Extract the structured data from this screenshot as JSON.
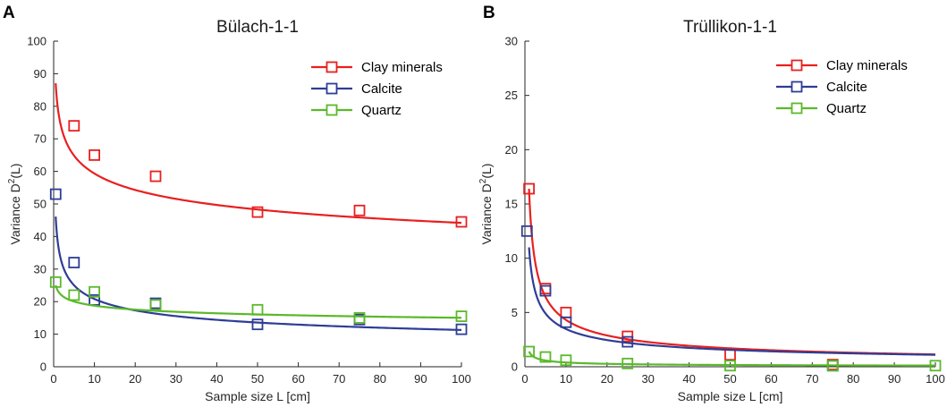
{
  "figure": {
    "panel_letters": [
      "A",
      "B"
    ]
  },
  "chart_data": [
    {
      "type": "scatter",
      "panel": "A",
      "title": "Bülach-1-1",
      "xlabel": "Sample size L [cm]",
      "ylabel_main": "Variance D",
      "ylabel_sup": "2",
      "ylabel_tail": "(L)",
      "xlim": [
        0,
        100
      ],
      "ylim": [
        0,
        100
      ],
      "xticks": [
        0,
        10,
        20,
        30,
        40,
        50,
        60,
        70,
        80,
        90,
        100
      ],
      "yticks": [
        0,
        10,
        20,
        30,
        40,
        50,
        60,
        70,
        80,
        90,
        100
      ],
      "legend_position": "top-right",
      "series": [
        {
          "name": "Clay minerals",
          "color": "#e8201f",
          "x": [
            5,
            10,
            25,
            50,
            75,
            100
          ],
          "y": [
            74,
            65,
            58.5,
            47.5,
            48,
            44.5
          ],
          "fit": {
            "a": 79.68,
            "b": -0.128,
            "x0": 0.5
          }
        },
        {
          "name": "Calcite",
          "color": "#2e3d96",
          "x": [
            0.5,
            5,
            10,
            25,
            50,
            75,
            100
          ],
          "y": [
            53,
            32,
            20.5,
            19.5,
            13,
            14.5,
            11.5
          ],
          "fit": {
            "a": 38.36,
            "b": -0.2655,
            "x0": 0.5
          }
        },
        {
          "name": "Quartz",
          "color": "#5ab92a",
          "x": [
            0.5,
            5,
            10,
            25,
            50,
            75,
            100
          ],
          "y": [
            26,
            22,
            23,
            19,
            17.5,
            15,
            15.5
          ],
          "fit": {
            "a": 23.39,
            "b": -0.0959,
            "x0": 0.5
          }
        }
      ]
    },
    {
      "type": "scatter",
      "panel": "B",
      "title": "Trüllikon-1-1",
      "xlabel": "Sample size L [cm]",
      "ylabel_main": "Variance D",
      "ylabel_sup": "2",
      "ylabel_tail": "(L)",
      "xlim": [
        0,
        100
      ],
      "ylim": [
        0,
        30
      ],
      "xticks": [
        0,
        10,
        20,
        30,
        40,
        50,
        60,
        70,
        80,
        90,
        100
      ],
      "yticks": [
        0,
        5,
        10,
        15,
        20,
        25,
        30
      ],
      "legend_position": "top-right",
      "series": [
        {
          "name": "Clay minerals",
          "color": "#e8201f",
          "x": [
            1,
            5,
            10,
            25,
            50,
            75
          ],
          "y": [
            16.4,
            7.2,
            5,
            2.8,
            1.1,
            0.2
          ],
          "fit": {
            "a": 16.4,
            "b": -0.58,
            "x0": 1
          }
        },
        {
          "name": "Calcite",
          "color": "#2e3d96",
          "x": [
            0.5,
            5,
            10,
            25,
            75
          ],
          "y": [
            12.5,
            7,
            4.1,
            2.3,
            0.1
          ],
          "fit": {
            "a": 11.0,
            "b": -0.5,
            "x0": 1
          }
        },
        {
          "name": "Quartz",
          "color": "#5ab92a",
          "x": [
            1,
            5,
            10,
            25,
            50,
            75,
            100
          ],
          "y": [
            1.4,
            0.9,
            0.6,
            0.3,
            0.1,
            0.1,
            0.1
          ],
          "fit": {
            "a": 1.4,
            "b": -0.55,
            "x0": 1
          }
        }
      ]
    }
  ]
}
